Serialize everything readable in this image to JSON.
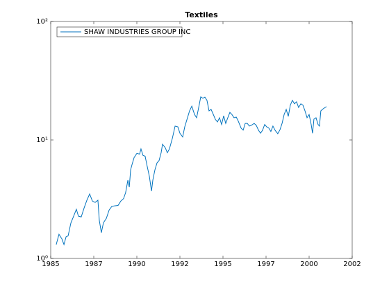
{
  "chart_data": {
    "type": "line",
    "title": "Textiles",
    "x": [
      1985.32,
      1985.48,
      1985.65,
      1985.77,
      1985.89,
      1986.01,
      1986.17,
      1986.33,
      1986.49,
      1986.61,
      1986.77,
      1986.94,
      1987.1,
      1987.26,
      1987.42,
      1987.58,
      1987.74,
      1987.82,
      1987.94,
      1988.06,
      1988.23,
      1988.39,
      1988.55,
      1988.71,
      1988.91,
      1989.07,
      1989.23,
      1989.35,
      1989.48,
      1989.56,
      1989.64,
      1989.72,
      1989.84,
      1990.0,
      1990.16,
      1990.24,
      1990.36,
      1990.48,
      1990.6,
      1990.73,
      1990.85,
      1990.93,
      1991.05,
      1991.17,
      1991.29,
      1991.41,
      1991.49,
      1991.65,
      1991.77,
      1991.89,
      1992.06,
      1992.22,
      1992.38,
      1992.5,
      1992.66,
      1992.78,
      1992.94,
      1993.06,
      1993.19,
      1993.35,
      1993.47,
      1993.59,
      1993.71,
      1993.83,
      1993.95,
      1994.07,
      1994.19,
      1994.31,
      1994.44,
      1994.56,
      1994.68,
      1994.8,
      1994.92,
      1995.04,
      1995.16,
      1995.28,
      1995.4,
      1995.52,
      1995.64,
      1995.77,
      1995.89,
      1996.05,
      1996.17,
      1996.29,
      1996.41,
      1996.53,
      1996.65,
      1996.81,
      1996.93,
      1997.06,
      1997.18,
      1997.3,
      1997.42,
      1997.54,
      1997.66,
      1997.78,
      1997.9,
      1998.02,
      1998.18,
      1998.31,
      1998.43,
      1998.55,
      1998.67,
      1998.79,
      1998.91,
      1999.03,
      1999.15,
      1999.27,
      1999.39,
      1999.52,
      1999.64,
      1999.76,
      1999.88,
      2000.0,
      2000.12,
      2000.2,
      2000.28,
      2000.4,
      2000.52,
      2000.6,
      2000.68,
      2000.81,
      2000.93,
      2001.01
    ],
    "series": [
      {
        "name": "SHAW INDUSTRIES GROUP INC",
        "color": "#0072bd",
        "values": [
          1.31,
          1.6,
          1.46,
          1.31,
          1.52,
          1.55,
          1.99,
          2.27,
          2.6,
          2.27,
          2.24,
          2.67,
          3.1,
          3.5,
          3.05,
          2.97,
          3.1,
          2.1,
          1.65,
          2.0,
          2.18,
          2.56,
          2.75,
          2.78,
          2.8,
          3.05,
          3.2,
          3.6,
          4.58,
          4.0,
          5.6,
          6.2,
          7.1,
          7.7,
          7.6,
          8.4,
          7.4,
          7.3,
          6.0,
          4.9,
          3.7,
          4.6,
          5.6,
          6.4,
          6.7,
          7.8,
          9.2,
          8.6,
          7.8,
          8.4,
          10.3,
          13.1,
          12.9,
          11.4,
          10.6,
          12.9,
          15.4,
          17.6,
          19.3,
          16.4,
          15.4,
          18.8,
          23.1,
          22.5,
          23,
          21.6,
          17.6,
          18.1,
          16.4,
          14.9,
          14.2,
          15.4,
          13.5,
          16,
          13.8,
          15.4,
          17.1,
          16.4,
          15.4,
          15.6,
          14.4,
          12.6,
          12.1,
          13.8,
          13.8,
          13.1,
          13.3,
          13.8,
          13.3,
          12.1,
          11.4,
          12.1,
          13.5,
          12.9,
          12.6,
          11.8,
          13.1,
          12.1,
          11.3,
          12.2,
          13.8,
          16.4,
          18.1,
          15.8,
          19.7,
          21.6,
          20.2,
          21.0,
          18.8,
          20.2,
          19.7,
          17.6,
          15.4,
          16.4,
          13.5,
          11.4,
          15,
          15.4,
          13.5,
          13.1,
          17.6,
          18.3,
          18.8,
          19.1
        ]
      }
    ],
    "xlim": [
      1985,
      2002.5
    ],
    "xticks": [
      1985,
      {
        "value": 1987.5,
        "label": "1987"
      },
      1990,
      {
        "value": 1992.5,
        "label": "1992"
      },
      1995,
      {
        "value": 1997.5,
        "label": "1997"
      },
      2000,
      {
        "value": 2002.5,
        "label": "2002"
      }
    ],
    "ylim": [
      1,
      100
    ],
    "log_y": true,
    "yticks": [
      {
        "value": 1,
        "label": "10⁰"
      },
      {
        "value": 10,
        "label": "10¹"
      },
      {
        "value": 100,
        "label": "10²"
      }
    ],
    "legend": "upper left"
  }
}
